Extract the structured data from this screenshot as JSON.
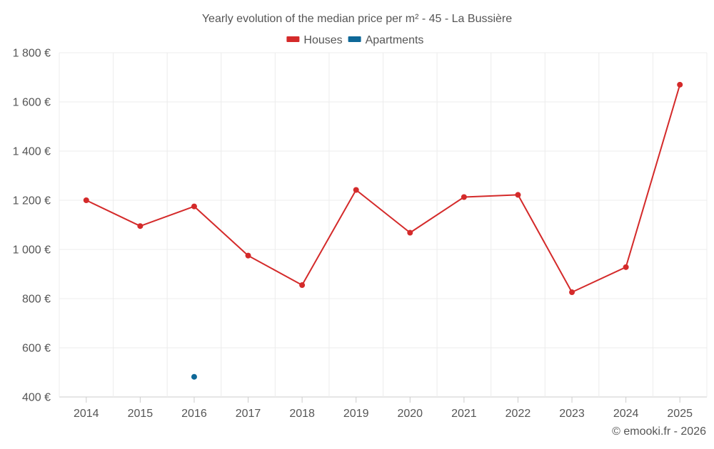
{
  "chart_data": {
    "type": "line",
    "title": "Yearly evolution of the median price per m² - 45 - La Bussière",
    "categories": [
      "2014",
      "2015",
      "2016",
      "2017",
      "2018",
      "2019",
      "2020",
      "2021",
      "2022",
      "2023",
      "2024",
      "2025"
    ],
    "series": [
      {
        "name": "Houses",
        "color": "#d42a2a",
        "values": [
          1200,
          1095,
          1175,
          975,
          855,
          1242,
          1068,
          1213,
          1222,
          826,
          928,
          1670
        ]
      },
      {
        "name": "Apartments",
        "color": "#0e6898",
        "values": [
          null,
          null,
          482,
          null,
          null,
          null,
          null,
          null,
          null,
          null,
          null,
          null
        ]
      }
    ],
    "ylim": [
      400,
      1800
    ],
    "yticks": [
      400,
      600,
      800,
      1000,
      1200,
      1400,
      1600,
      1800
    ],
    "ytick_labels": [
      "400 €",
      "600 €",
      "800 €",
      "1 000 €",
      "1 200 €",
      "1 400 €",
      "1 600 €",
      "1 800 €"
    ],
    "grid": true,
    "legend_position": "top-center",
    "xlabel": "",
    "ylabel": ""
  },
  "credit": "© emooki.fr - 2026"
}
